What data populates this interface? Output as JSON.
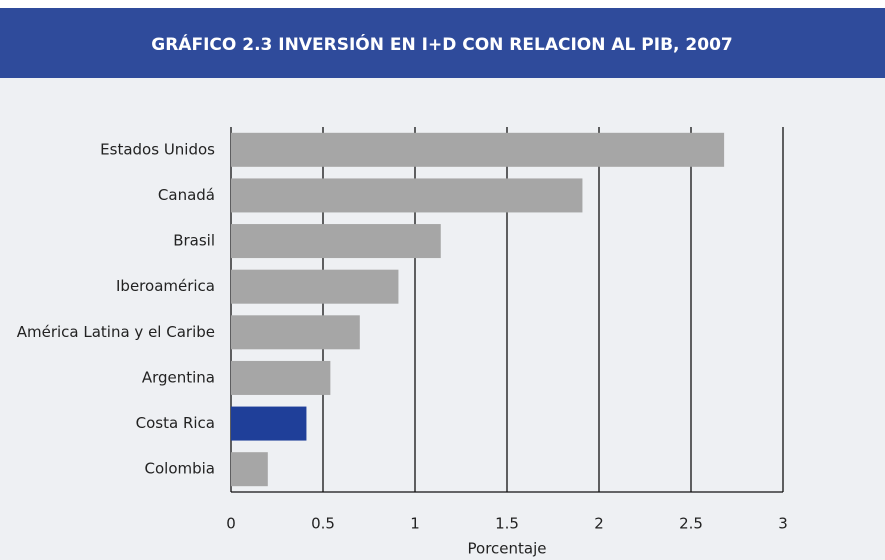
{
  "chart_data": {
    "type": "hbar",
    "title": "GRÁFICO 2.3 INVERSIÓN EN I+D CON RELACION AL PIB, 2007",
    "x_label": "Porcentaje",
    "categories": [
      "Estados Unidos",
      "Canadá",
      "Brasil",
      "Iberoamérica",
      "América Latina y el Caribe",
      "Argentina",
      "Costa Rica",
      "Colombia"
    ],
    "values": [
      2.68,
      1.91,
      1.14,
      0.91,
      0.7,
      0.54,
      0.41,
      0.2
    ],
    "colors": [
      "#a6a6a6",
      "#a6a6a6",
      "#a6a6a6",
      "#a6a6a6",
      "#a6a6a6",
      "#a6a6a6",
      "#1f3f99",
      "#a6a6a6"
    ],
    "xlim": [
      0,
      3
    ],
    "xticks": [
      0,
      0.5,
      1,
      1.5,
      2,
      2.5,
      3
    ],
    "grid": true
  }
}
